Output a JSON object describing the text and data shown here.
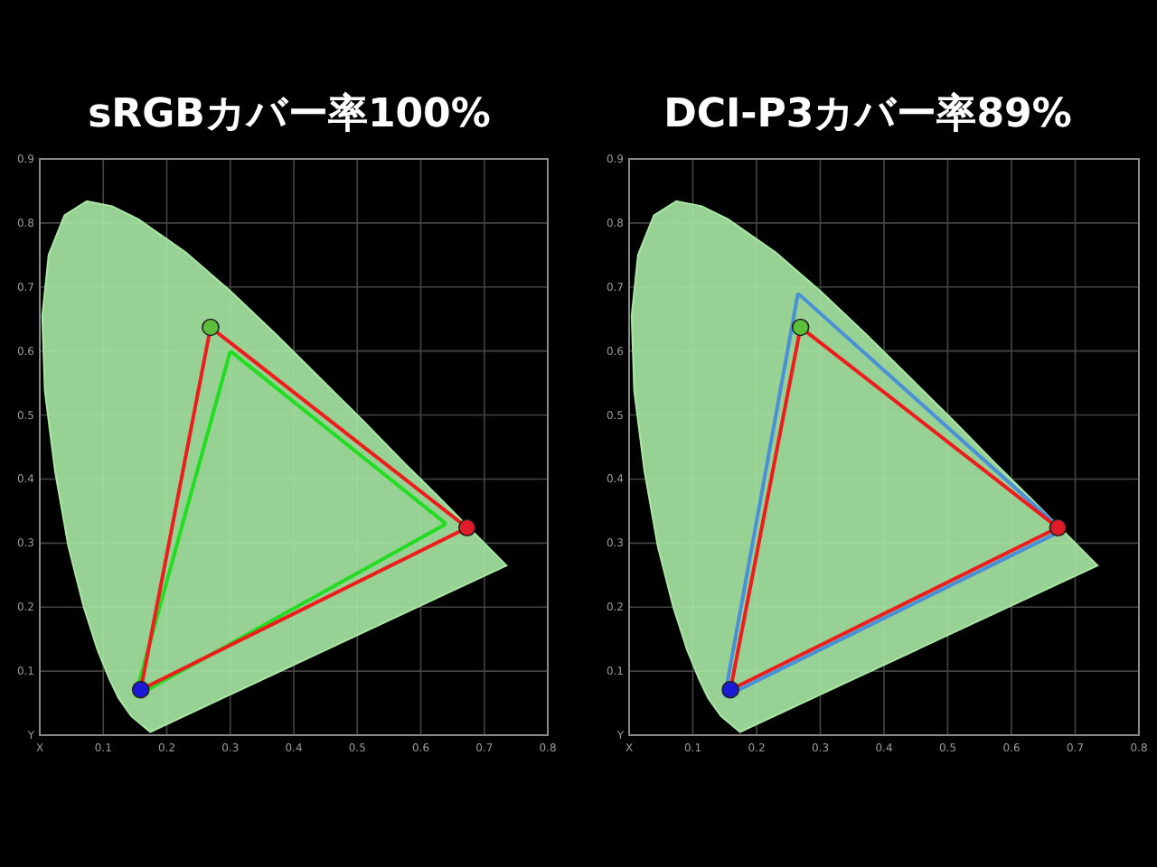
{
  "chart_data": [
    {
      "type": "line",
      "title": "sRGBカバー率100%",
      "xlim": [
        0,
        0.8
      ],
      "ylim": [
        0,
        0.9
      ],
      "xticks": [
        {
          "value": 0,
          "label": "X"
        },
        0.1,
        0.2,
        0.3,
        0.4,
        0.5,
        0.6,
        0.7,
        0.8
      ],
      "yticks": [
        {
          "value": 0,
          "label": "Y"
        },
        0.1,
        0.2,
        0.3,
        0.4,
        0.5,
        0.6,
        0.7,
        0.8,
        0.9
      ],
      "grid": true,
      "line_style": "solid",
      "series": [
        {
          "type": "area",
          "color": "#a8e8a4",
          "x": [
            0.174,
            0.144,
            0.124,
            0.11,
            0.091,
            0.069,
            0.045,
            0.024,
            0.008,
            0.004,
            0.014,
            0.039,
            0.074,
            0.114,
            0.155,
            0.23,
            0.302,
            0.373,
            0.444,
            0.513,
            0.575,
            0.627,
            0.692,
            0.735,
            0.174
          ],
          "values": [
            0.005,
            0.03,
            0.058,
            0.087,
            0.133,
            0.201,
            0.295,
            0.413,
            0.538,
            0.655,
            0.75,
            0.812,
            0.834,
            0.826,
            0.806,
            0.754,
            0.692,
            0.625,
            0.555,
            0.487,
            0.424,
            0.373,
            0.308,
            0.265,
            0.005
          ]
        },
        {
          "color": "#22dd22",
          "x": [
            0.3,
            0.64
          ],
          "values": [
            0.6,
            0.33
          ]
        },
        {
          "color": "#22dd22",
          "x": [
            0.15,
            0.3
          ],
          "values": [
            0.06,
            0.6
          ]
        },
        {
          "color": "#22dd22",
          "x": [
            0.15,
            0.64
          ],
          "values": [
            0.06,
            0.33
          ]
        },
        {
          "color": "#ee1c1c",
          "x": [
            0.269,
            0.673
          ],
          "values": [
            0.637,
            0.324
          ]
        },
        {
          "color": "#ee1c1c",
          "x": [
            0.159,
            0.269
          ],
          "values": [
            0.071,
            0.637
          ]
        },
        {
          "color": "#ee1c1c",
          "x": [
            0.159,
            0.673
          ],
          "values": [
            0.071,
            0.324
          ]
        },
        {
          "type": "scatter",
          "marker": "circle",
          "colors": [
            "#e01b2a",
            "#5cbf3a",
            "#1a1ad8"
          ],
          "x": [
            0.673,
            0.269,
            0.159
          ],
          "values": [
            0.324,
            0.637,
            0.071
          ]
        }
      ]
    },
    {
      "type": "line",
      "title": "DCI-P3カバー率89%",
      "xlim": [
        0,
        0.8
      ],
      "ylim": [
        0,
        0.9
      ],
      "xticks": [
        {
          "value": 0,
          "label": "X"
        },
        0.1,
        0.2,
        0.3,
        0.4,
        0.5,
        0.6,
        0.7,
        0.8
      ],
      "yticks": [
        {
          "value": 0,
          "label": "Y"
        },
        0.1,
        0.2,
        0.3,
        0.4,
        0.5,
        0.6,
        0.7,
        0.8,
        0.9
      ],
      "grid": true,
      "line_style": "solid",
      "series": [
        {
          "type": "area",
          "color": "#a8e8a4",
          "x": [
            0.174,
            0.144,
            0.124,
            0.11,
            0.091,
            0.069,
            0.045,
            0.024,
            0.008,
            0.004,
            0.014,
            0.039,
            0.074,
            0.114,
            0.155,
            0.23,
            0.302,
            0.373,
            0.444,
            0.513,
            0.575,
            0.627,
            0.692,
            0.735,
            0.174
          ],
          "values": [
            0.005,
            0.03,
            0.058,
            0.087,
            0.133,
            0.201,
            0.295,
            0.413,
            0.538,
            0.655,
            0.75,
            0.812,
            0.834,
            0.826,
            0.806,
            0.754,
            0.692,
            0.625,
            0.555,
            0.487,
            0.424,
            0.373,
            0.308,
            0.265,
            0.005
          ]
        },
        {
          "color": "#4a90d9",
          "x": [
            0.265,
            0.68
          ],
          "values": [
            0.69,
            0.32
          ]
        },
        {
          "color": "#4a90d9",
          "x": [
            0.15,
            0.265
          ],
          "values": [
            0.06,
            0.69
          ]
        },
        {
          "color": "#4a90d9",
          "x": [
            0.15,
            0.68
          ],
          "values": [
            0.06,
            0.32
          ]
        },
        {
          "color": "#ee1c1c",
          "x": [
            0.269,
            0.673
          ],
          "values": [
            0.637,
            0.324
          ]
        },
        {
          "color": "#ee1c1c",
          "x": [
            0.159,
            0.269
          ],
          "values": [
            0.071,
            0.637
          ]
        },
        {
          "color": "#ee1c1c",
          "x": [
            0.159,
            0.673
          ],
          "values": [
            0.071,
            0.324
          ]
        },
        {
          "type": "scatter",
          "marker": "circle",
          "colors": [
            "#e01b2a",
            "#5cbf3a",
            "#1a1ad8"
          ],
          "x": [
            0.673,
            0.269,
            0.159
          ],
          "values": [
            0.324,
            0.637,
            0.071
          ]
        }
      ]
    }
  ]
}
